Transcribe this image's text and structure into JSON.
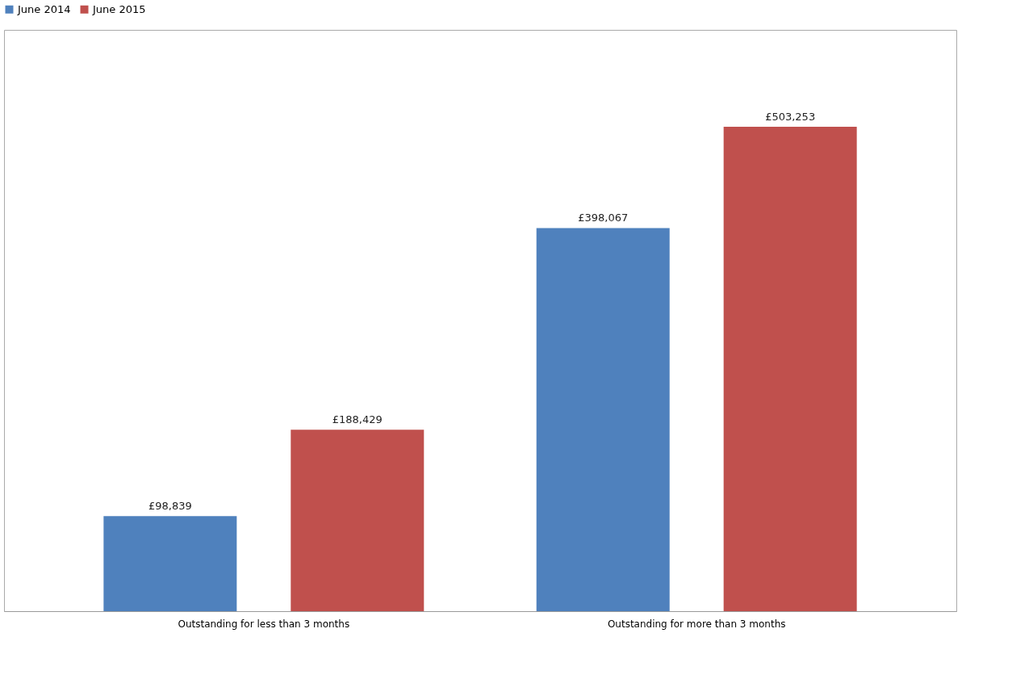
{
  "chart_data": {
    "type": "bar",
    "categories": [
      "Outstanding for less than 3 months",
      "Outstanding for more than 3 months"
    ],
    "series": [
      {
        "name": "June 2014",
        "color": "#4f81bd",
        "values": [
          98839,
          398067
        ],
        "value_labels": [
          "£98,839",
          "£398,067"
        ]
      },
      {
        "name": "June 2015",
        "color": "#c0504d",
        "values": [
          188429,
          503253
        ],
        "value_labels": [
          "£188,429",
          "£503,253"
        ]
      }
    ],
    "legend": "top"
  }
}
